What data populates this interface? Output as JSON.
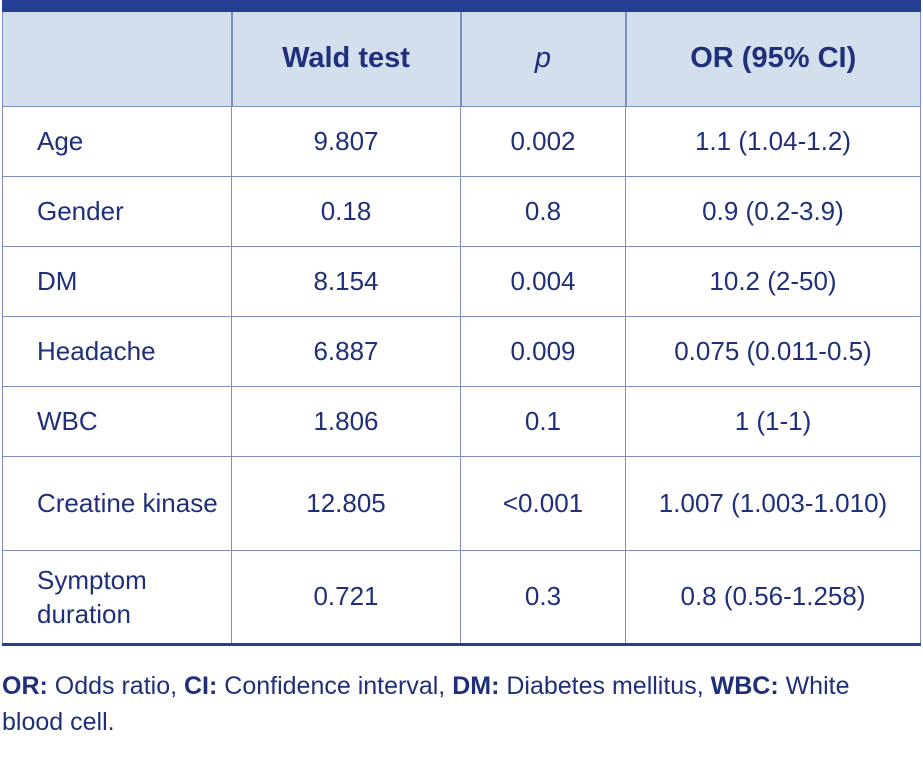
{
  "table": {
    "headers": [
      "",
      "Wald test",
      "p",
      "OR (95% CI)"
    ],
    "rows": [
      [
        "Age",
        "9.807",
        "0.002",
        "1.1 (1.04-1.2)"
      ],
      [
        "Gender",
        "0.18",
        "0.8",
        "0.9 (0.2-3.9)"
      ],
      [
        "DM",
        "8.154",
        "0.004",
        "10.2 (2-50)"
      ],
      [
        "Headache",
        "6.887",
        "0.009",
        "0.075 (0.011-0.5)"
      ],
      [
        "WBC",
        "1.806",
        "0.1",
        "1 (1-1)"
      ],
      [
        "Creatine kinase",
        "12.805",
        "<0.001",
        "1.007 (1.003-1.010)"
      ],
      [
        "Symptom duration",
        "0.721",
        "0.3",
        "0.8 (0.56-1.258)"
      ]
    ]
  },
  "footnote": {
    "items": [
      {
        "abbr": "OR:",
        "text": " Odds ratio, "
      },
      {
        "abbr": "CI:",
        "text": " Confidence interval, "
      },
      {
        "abbr": "DM:",
        "text": " Diabetes mellitus, "
      },
      {
        "abbr": "WBC:",
        "text": " White blood cell."
      }
    ]
  },
  "colors": {
    "text": "#1f2f7a",
    "header_bg": "#d4dfee",
    "rule": "#243f93",
    "grid": "#7e8fbf"
  }
}
